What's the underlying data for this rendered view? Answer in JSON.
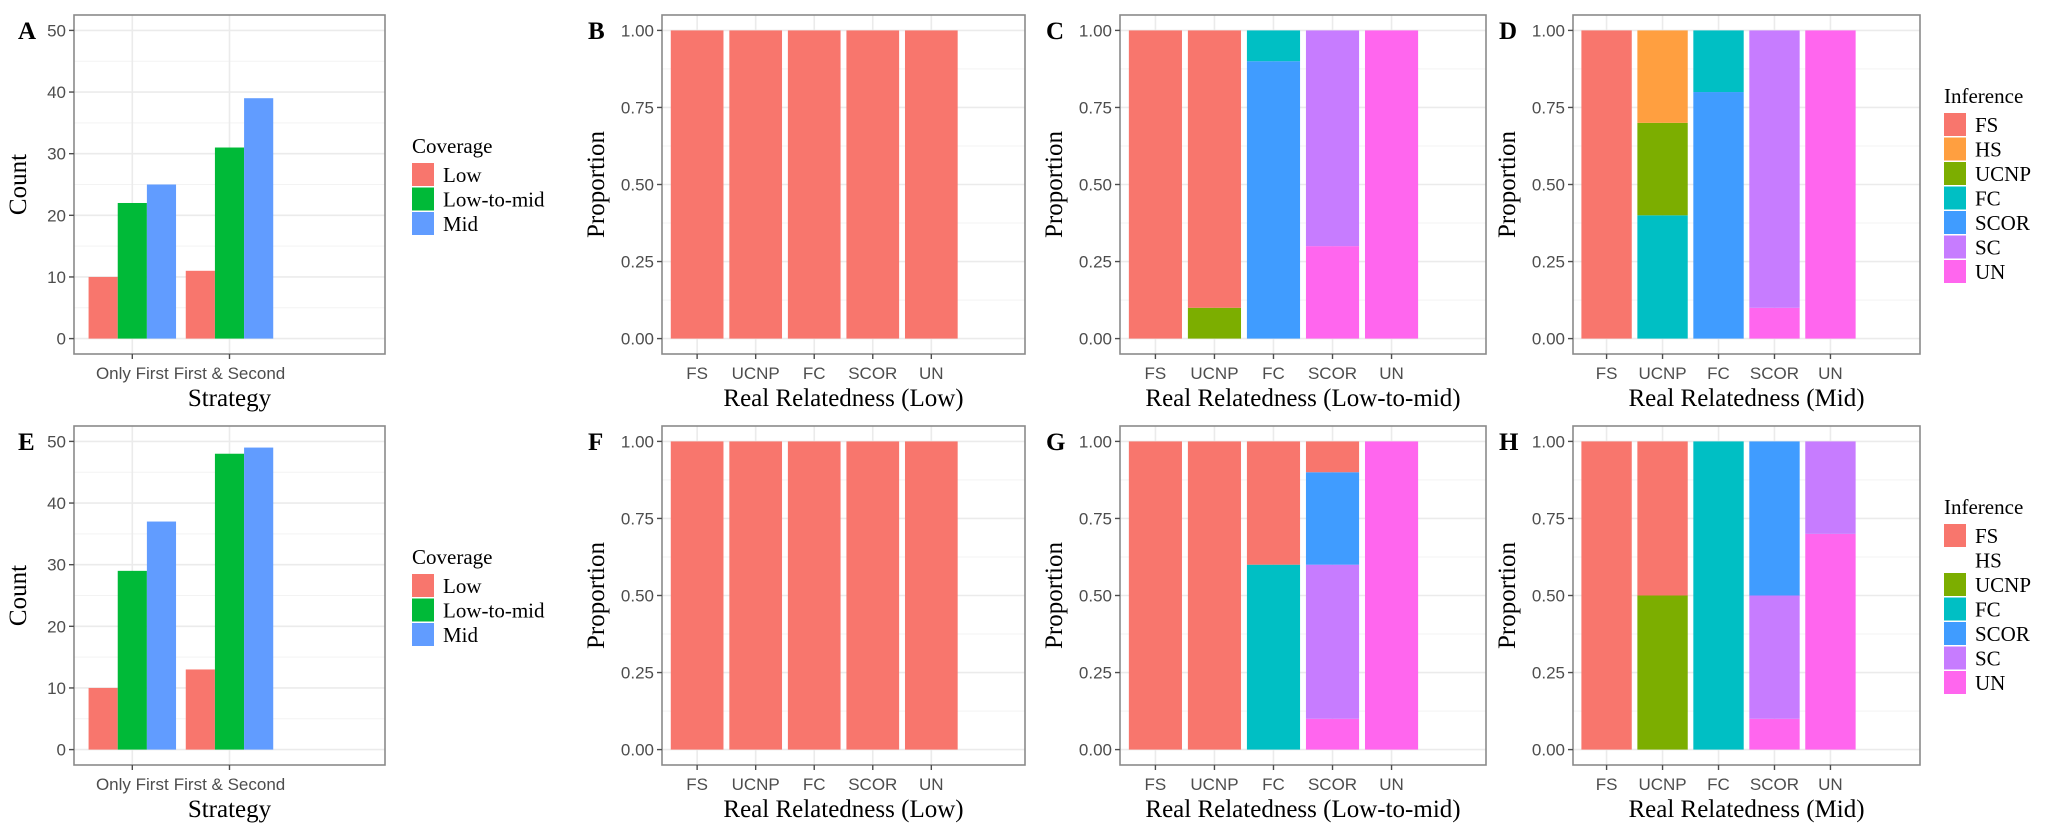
{
  "colors": {
    "coverage": {
      "Low": "#F8766D",
      "Low-to-mid": "#00BA38",
      "Mid": "#619CFF"
    },
    "inference": {
      "FS": "#F8766D",
      "HS": "#FF9F40",
      "UCNP": "#7CAE00",
      "FC": "#00BFC4",
      "SCOR": "#409CFF",
      "SC": "#C77CFF",
      "UN": "#FF66EE"
    }
  },
  "chart_data": [
    {
      "label": "A",
      "type": "bar",
      "palette": "coverage",
      "categories": [
        "Only First",
        "First & Second"
      ],
      "series": [
        {
          "name": "Low",
          "values": [
            10,
            11
          ]
        },
        {
          "name": "Low-to-mid",
          "values": [
            22,
            31
          ]
        },
        {
          "name": "Mid",
          "values": [
            25,
            39
          ]
        }
      ],
      "xlabel": "Strategy",
      "ylabel": "Count",
      "ylim": [
        0,
        50
      ],
      "yticks": [
        "0",
        "10",
        "20",
        "30",
        "40",
        "50"
      ],
      "grid": true,
      "legend": {
        "title": "Coverage",
        "position": "right",
        "entries": [
          "Low",
          "Low-to-mid",
          "Mid"
        ],
        "shown": [
          true,
          true,
          true
        ]
      }
    },
    {
      "label": "B",
      "type": "stacked_bar",
      "palette": "inference",
      "categories": [
        "FS",
        "UCNP",
        "FC",
        "SCOR",
        "UN"
      ],
      "series": [
        {
          "name": "FS",
          "values": [
            1,
            1,
            1,
            1,
            1
          ]
        },
        {
          "name": "HS",
          "values": [
            0,
            0,
            0,
            0,
            0
          ]
        },
        {
          "name": "UCNP",
          "values": [
            0,
            0,
            0,
            0,
            0
          ]
        },
        {
          "name": "FC",
          "values": [
            0,
            0,
            0,
            0,
            0
          ]
        },
        {
          "name": "SCOR",
          "values": [
            0,
            0,
            0,
            0,
            0
          ]
        },
        {
          "name": "SC",
          "values": [
            0,
            0,
            0,
            0,
            0
          ]
        },
        {
          "name": "UN",
          "values": [
            0,
            0,
            0,
            0,
            0
          ]
        }
      ],
      "xlabel": "Real Relatedness (Low)",
      "ylabel": "Proportion",
      "ylim": [
        0,
        1
      ],
      "yticks": [
        "0.00",
        "0.25",
        "0.50",
        "0.75",
        "1.00"
      ],
      "grid": true,
      "legend": null
    },
    {
      "label": "C",
      "type": "stacked_bar",
      "palette": "inference",
      "categories": [
        "FS",
        "UCNP",
        "FC",
        "SCOR",
        "UN"
      ],
      "series": [
        {
          "name": "FS",
          "values": [
            1,
            0.9,
            0,
            0,
            0
          ]
        },
        {
          "name": "HS",
          "values": [
            0,
            0,
            0,
            0,
            0
          ]
        },
        {
          "name": "UCNP",
          "values": [
            0,
            0.1,
            0,
            0,
            0
          ]
        },
        {
          "name": "FC",
          "values": [
            0,
            0,
            0.1,
            0,
            0
          ]
        },
        {
          "name": "SCOR",
          "values": [
            0,
            0,
            0.9,
            0,
            0
          ]
        },
        {
          "name": "SC",
          "values": [
            0,
            0,
            0,
            0.7,
            0
          ]
        },
        {
          "name": "UN",
          "values": [
            0,
            0,
            0,
            0.3,
            1
          ]
        }
      ],
      "xlabel": "Real Relatedness (Low-to-mid)",
      "ylabel": "Proportion",
      "ylim": [
        0,
        1
      ],
      "yticks": [
        "0.00",
        "0.25",
        "0.50",
        "0.75",
        "1.00"
      ],
      "grid": true,
      "legend": null
    },
    {
      "label": "D",
      "type": "stacked_bar",
      "palette": "inference",
      "categories": [
        "FS",
        "UCNP",
        "FC",
        "SCOR",
        "UN"
      ],
      "series": [
        {
          "name": "FS",
          "values": [
            1,
            0,
            0,
            0,
            0
          ]
        },
        {
          "name": "HS",
          "values": [
            0,
            0.3,
            0,
            0,
            0
          ]
        },
        {
          "name": "UCNP",
          "values": [
            0,
            0.3,
            0,
            0,
            0
          ]
        },
        {
          "name": "FC",
          "values": [
            0,
            0.4,
            0.2,
            0,
            0
          ]
        },
        {
          "name": "SCOR",
          "values": [
            0,
            0,
            0.8,
            0,
            0
          ]
        },
        {
          "name": "SC",
          "values": [
            0,
            0,
            0,
            0.9,
            0
          ]
        },
        {
          "name": "UN",
          "values": [
            0,
            0,
            0,
            0.1,
            1
          ]
        }
      ],
      "xlabel": "Real Relatedness (Mid)",
      "ylabel": "Proportion",
      "ylim": [
        0,
        1
      ],
      "yticks": [
        "0.00",
        "0.25",
        "0.50",
        "0.75",
        "1.00"
      ],
      "grid": true,
      "legend": {
        "title": "Inference",
        "position": "right",
        "entries": [
          "FS",
          "HS",
          "UCNP",
          "FC",
          "SCOR",
          "SC",
          "UN"
        ],
        "shown": [
          true,
          true,
          true,
          true,
          true,
          true,
          true
        ]
      }
    },
    {
      "label": "E",
      "type": "bar",
      "palette": "coverage",
      "categories": [
        "Only First",
        "First & Second"
      ],
      "series": [
        {
          "name": "Low",
          "values": [
            10,
            13
          ]
        },
        {
          "name": "Low-to-mid",
          "values": [
            29,
            48
          ]
        },
        {
          "name": "Mid",
          "values": [
            37,
            49
          ]
        }
      ],
      "xlabel": "Strategy",
      "ylabel": "Count",
      "ylim": [
        0,
        50
      ],
      "yticks": [
        "0",
        "10",
        "20",
        "30",
        "40",
        "50"
      ],
      "grid": true,
      "legend": {
        "title": "Coverage",
        "position": "right",
        "entries": [
          "Low",
          "Low-to-mid",
          "Mid"
        ],
        "shown": [
          true,
          true,
          true
        ]
      }
    },
    {
      "label": "F",
      "type": "stacked_bar",
      "palette": "inference",
      "categories": [
        "FS",
        "UCNP",
        "FC",
        "SCOR",
        "UN"
      ],
      "series": [
        {
          "name": "FS",
          "values": [
            1,
            1,
            1,
            1,
            1
          ]
        },
        {
          "name": "HS",
          "values": [
            0,
            0,
            0,
            0,
            0
          ]
        },
        {
          "name": "UCNP",
          "values": [
            0,
            0,
            0,
            0,
            0
          ]
        },
        {
          "name": "FC",
          "values": [
            0,
            0,
            0,
            0,
            0
          ]
        },
        {
          "name": "SCOR",
          "values": [
            0,
            0,
            0,
            0,
            0
          ]
        },
        {
          "name": "SC",
          "values": [
            0,
            0,
            0,
            0,
            0
          ]
        },
        {
          "name": "UN",
          "values": [
            0,
            0,
            0,
            0,
            0
          ]
        }
      ],
      "xlabel": "Real Relatedness (Low)",
      "ylabel": "Proportion",
      "ylim": [
        0,
        1
      ],
      "yticks": [
        "0.00",
        "0.25",
        "0.50",
        "0.75",
        "1.00"
      ],
      "grid": true,
      "legend": null
    },
    {
      "label": "G",
      "type": "stacked_bar",
      "palette": "inference",
      "categories": [
        "FS",
        "UCNP",
        "FC",
        "SCOR",
        "UN"
      ],
      "series": [
        {
          "name": "FS",
          "values": [
            1,
            1,
            0.4,
            0.1,
            0
          ]
        },
        {
          "name": "HS",
          "values": [
            0,
            0,
            0,
            0,
            0
          ]
        },
        {
          "name": "UCNP",
          "values": [
            0,
            0,
            0,
            0,
            0
          ]
        },
        {
          "name": "FC",
          "values": [
            0,
            0,
            0.6,
            0,
            0
          ]
        },
        {
          "name": "SCOR",
          "values": [
            0,
            0,
            0,
            0.3,
            0
          ]
        },
        {
          "name": "SC",
          "values": [
            0,
            0,
            0,
            0.5,
            0
          ]
        },
        {
          "name": "UN",
          "values": [
            0,
            0,
            0,
            0.1,
            1
          ]
        }
      ],
      "xlabel": "Real Relatedness (Low-to-mid)",
      "ylabel": "Proportion",
      "ylim": [
        0,
        1
      ],
      "yticks": [
        "0.00",
        "0.25",
        "0.50",
        "0.75",
        "1.00"
      ],
      "grid": true,
      "legend": null
    },
    {
      "label": "H",
      "type": "stacked_bar",
      "palette": "inference",
      "categories": [
        "FS",
        "UCNP",
        "FC",
        "SCOR",
        "UN"
      ],
      "series": [
        {
          "name": "FS",
          "values": [
            1,
            0.5,
            0,
            0,
            0
          ]
        },
        {
          "name": "HS",
          "values": [
            0,
            0,
            0,
            0,
            0
          ]
        },
        {
          "name": "UCNP",
          "values": [
            0,
            0.5,
            0,
            0,
            0
          ]
        },
        {
          "name": "FC",
          "values": [
            0,
            0,
            1,
            0,
            0
          ]
        },
        {
          "name": "SCOR",
          "values": [
            0,
            0,
            0,
            0.5,
            0
          ]
        },
        {
          "name": "SC",
          "values": [
            0,
            0,
            0,
            0.4,
            0.3
          ]
        },
        {
          "name": "UN",
          "values": [
            0,
            0,
            0,
            0.1,
            0.7
          ]
        }
      ],
      "xlabel": "Real Relatedness (Mid)",
      "ylabel": "Proportion",
      "ylim": [
        0,
        1
      ],
      "yticks": [
        "0.00",
        "0.25",
        "0.50",
        "0.75",
        "1.00"
      ],
      "grid": true,
      "legend": {
        "title": "Inference",
        "position": "right",
        "entries": [
          "FS",
          "HS",
          "UCNP",
          "FC",
          "SCOR",
          "SC",
          "UN"
        ],
        "shown": [
          true,
          false,
          true,
          true,
          true,
          true,
          true
        ]
      }
    }
  ]
}
